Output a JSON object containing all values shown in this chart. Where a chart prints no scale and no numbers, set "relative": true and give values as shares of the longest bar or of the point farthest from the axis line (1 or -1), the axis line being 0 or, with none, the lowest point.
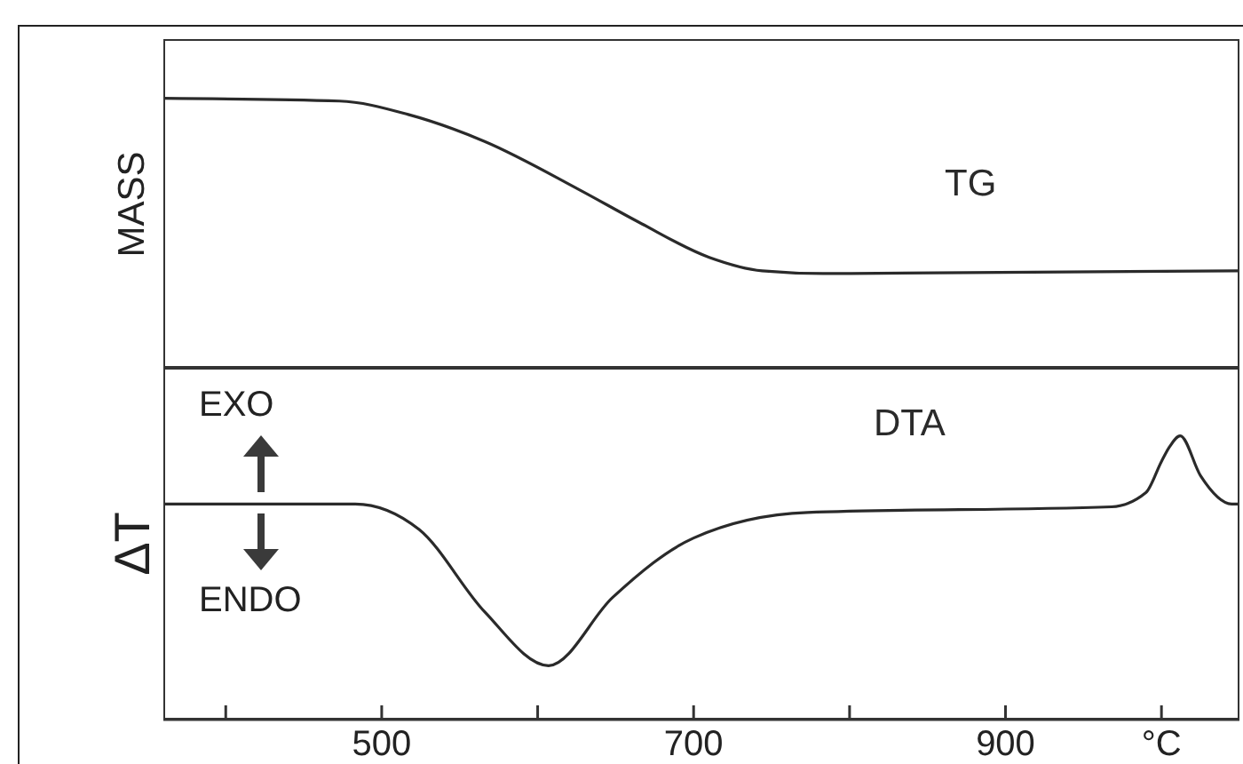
{
  "chart_data": [
    {
      "type": "line",
      "ylabel": "MASS",
      "relative": true,
      "xlim": [
        360,
        1050
      ],
      "tick_labels": false,
      "grid": false,
      "legend": false,
      "marker": "none",
      "line_style": "solid",
      "series": [
        {
          "name": "TG",
          "color": "#2a2a2a",
          "x": [
            360,
            473,
            517,
            566,
            627,
            665,
            710,
            744,
            783,
            1050
          ],
          "values": [
            1,
            0.99,
            0.94,
            0.84,
            0.66,
            0.54,
            0.41,
            0.36,
            0.35,
            0.36
          ]
        }
      ]
    },
    {
      "type": "line",
      "ylabel": "ΔT",
      "relative": true,
      "xlim": [
        360,
        1050
      ],
      "xticks": [
        {
          "value": 400,
          "label": null
        },
        500,
        {
          "value": 600,
          "label": null
        },
        700,
        {
          "value": 800,
          "label": null
        },
        900,
        {
          "value": 1000,
          "label": "°C"
        }
      ],
      "tick_labels": "x",
      "grid": false,
      "legend": false,
      "marker": "none",
      "line_style": "solid",
      "annotations": [
        "EXO",
        "ENDO"
      ],
      "series": [
        {
          "name": "DTA",
          "color": "#2a2a2a",
          "x": [
            360,
            483,
            524,
            566,
            607,
            648,
            700,
            773,
            968,
            990,
            1000,
            1005,
            1012,
            1025,
            1045,
            1050
          ],
          "values": [
            0.76,
            0.76,
            0.67,
            0.38,
            0.19,
            0.43,
            0.64,
            0.73,
            0.75,
            0.8,
            0.91,
            0.96,
            1,
            0.86,
            0.76,
            0.76
          ]
        }
      ]
    }
  ]
}
